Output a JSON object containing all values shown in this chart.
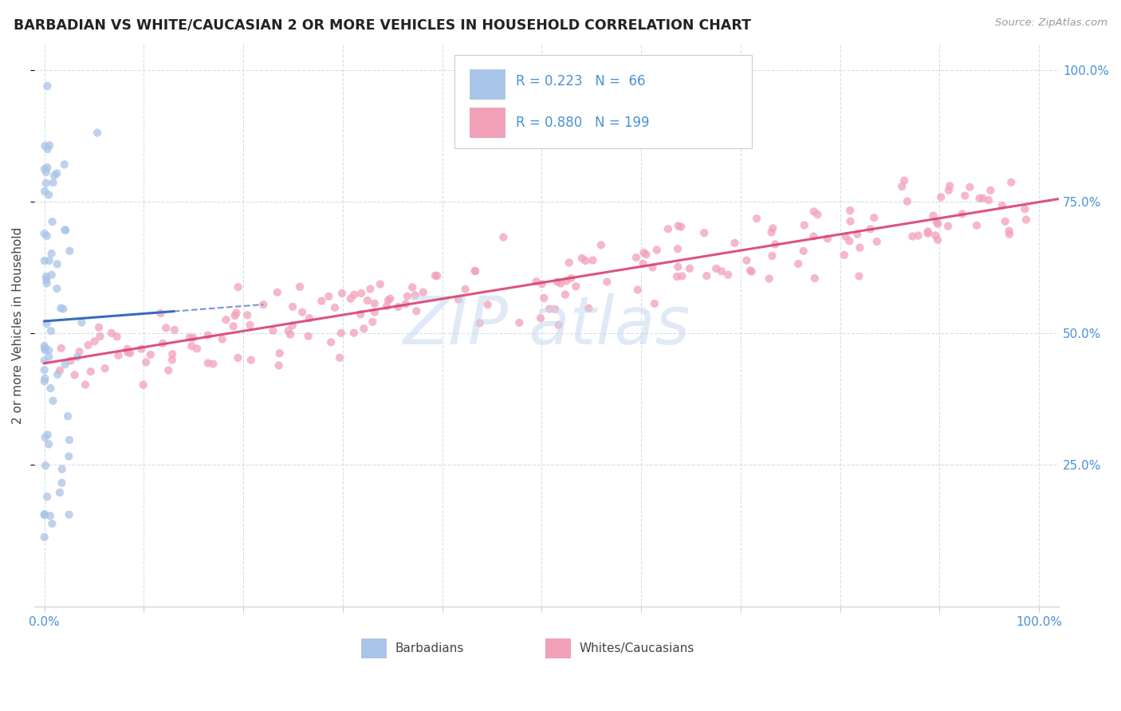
{
  "title": "BARBADIAN VS WHITE/CAUCASIAN 2 OR MORE VEHICLES IN HOUSEHOLD CORRELATION CHART",
  "source": "Source: ZipAtlas.com",
  "ylabel": "2 or more Vehicles in Household",
  "legend_label1": "Barbadians",
  "legend_label2": "Whites/Caucasians",
  "R1": 0.223,
  "N1": 66,
  "R2": 0.88,
  "N2": 199,
  "color_blue": "#a8c4e8",
  "color_blue_line": "#3a6abf",
  "color_pink": "#f2a0b8",
  "color_pink_line": "#d94070",
  "color_axis_label": "#4a90d9",
  "watermark_color": "#c8d8f0",
  "title_color": "#222222",
  "source_color": "#999999",
  "grid_color": "#c8d8e8",
  "bottom_spine_color": "#cccccc"
}
